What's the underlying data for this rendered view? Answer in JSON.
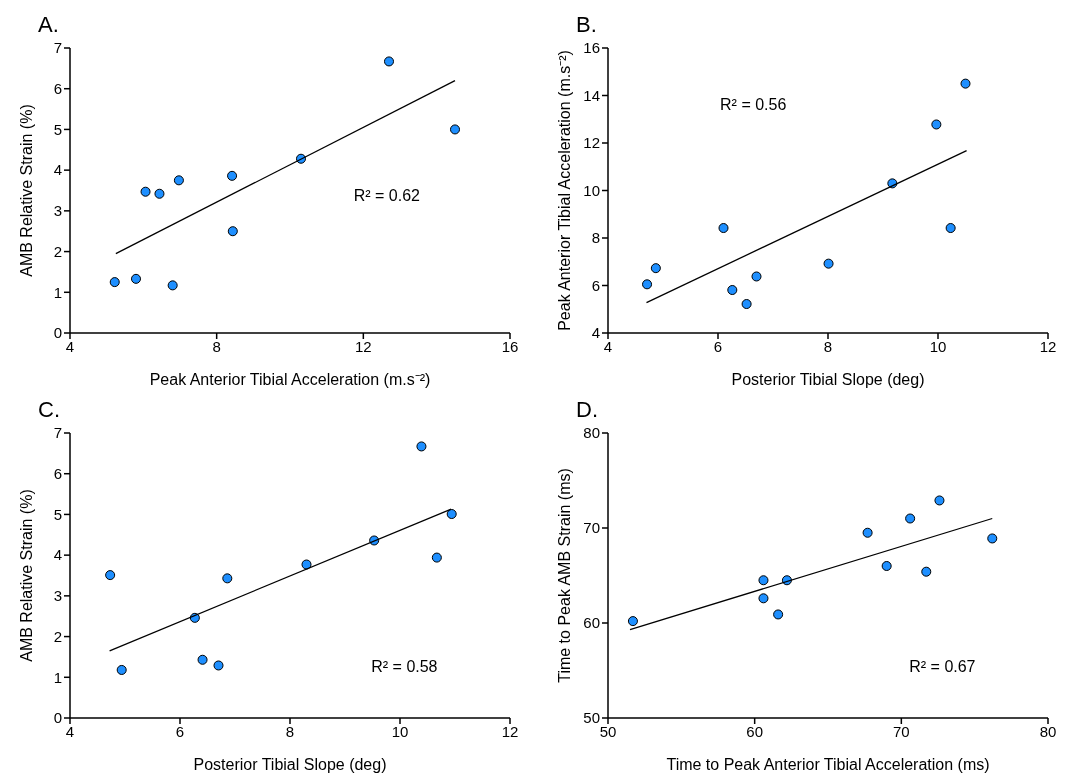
{
  "chart_data": [
    {
      "type": "scatter",
      "title": "A.",
      "xlabel": "Peak Anterior Tibial Acceleration (m.s⁻²)",
      "ylabel": "AMB Relative Strain (%)",
      "xlim": [
        4,
        16
      ],
      "xticks": [
        4,
        8,
        12,
        16
      ],
      "ylim": [
        0,
        7
      ],
      "yticks": [
        0,
        1,
        2,
        3,
        4,
        5,
        6,
        7
      ],
      "grid": false,
      "legend": false,
      "annotations": [
        "R² = 0.62"
      ],
      "series": [
        {
          "marker": "circle",
          "color": "#1e8fff",
          "x": [
            5.22,
            5.8,
            6.06,
            6.44,
            6.97,
            6.8,
            8.42,
            8.44,
            10.3,
            12.7,
            14.5
          ],
          "values": [
            1.25,
            1.33,
            3.47,
            3.42,
            3.75,
            1.17,
            3.86,
            2.5,
            4.28,
            6.67,
            5.0
          ]
        },
        {
          "type": "line",
          "marker": "none",
          "color": "#000000",
          "x": [
            5.25,
            14.5
          ],
          "values": [
            1.95,
            6.2
          ]
        }
      ]
    },
    {
      "type": "scatter",
      "title": "B.",
      "xlabel": "Posterior Tibial Slope (deg)",
      "ylabel": "Peak Anterior Tibial Acceleration (m.s⁻²)",
      "xlim": [
        4,
        12
      ],
      "xticks": [
        4,
        6,
        8,
        10,
        12
      ],
      "ylim": [
        4,
        16
      ],
      "yticks": [
        4,
        6,
        8,
        10,
        12,
        14,
        16
      ],
      "grid": false,
      "legend": false,
      "annotations": [
        "R² = 0.56"
      ],
      "series": [
        {
          "marker": "circle",
          "color": "#1e8fff",
          "x": [
            4.71,
            4.87,
            6.1,
            6.26,
            6.52,
            6.7,
            8.01,
            9.17,
            9.97,
            10.23,
            10.5
          ],
          "values": [
            6.05,
            6.73,
            8.42,
            5.81,
            5.22,
            6.38,
            6.92,
            10.3,
            12.78,
            8.42,
            14.5
          ]
        },
        {
          "type": "line",
          "marker": "none",
          "color": "#000000",
          "x": [
            4.7,
            10.52
          ],
          "values": [
            5.28,
            11.68
          ]
        }
      ]
    },
    {
      "type": "scatter",
      "title": "C.",
      "xlabel": "Posterior Tibial Slope (deg)",
      "ylabel": "AMB Relative Strain (%)",
      "xlim": [
        4,
        12
      ],
      "xticks": [
        4,
        6,
        8,
        10,
        12
      ],
      "ylim": [
        0,
        7
      ],
      "yticks": [
        0,
        1,
        2,
        3,
        4,
        5,
        6,
        7
      ],
      "grid": false,
      "legend": false,
      "annotations": [
        "R² = 0.58"
      ],
      "series": [
        {
          "marker": "circle",
          "color": "#1e8fff",
          "x": [
            4.73,
            4.94,
            6.27,
            6.41,
            6.7,
            6.86,
            8.3,
            9.53,
            10.39,
            10.67,
            10.94
          ],
          "values": [
            3.51,
            1.18,
            2.46,
            1.43,
            1.29,
            3.43,
            3.77,
            4.36,
            6.67,
            3.94,
            5.01
          ]
        },
        {
          "type": "line",
          "marker": "none",
          "color": "#000000",
          "x": [
            4.72,
            10.93
          ],
          "values": [
            1.65,
            5.13
          ]
        }
      ]
    },
    {
      "type": "scatter",
      "title": "D.",
      "xlabel": "Time to Peak Anterior Tibial Acceleration (ms)",
      "ylabel": "Time to Peak AMB Strain (ms)",
      "xlim": [
        50,
        80
      ],
      "xticks": [
        50,
        60,
        70,
        80
      ],
      "ylim": [
        50,
        80
      ],
      "yticks": [
        50,
        60,
        70,
        80
      ],
      "grid": false,
      "legend": false,
      "annotations": [
        "R² = 0.67"
      ],
      "series": [
        {
          "marker": "circle",
          "color": "#1e8fff",
          "x": [
            51.7,
            60.6,
            60.6,
            61.6,
            62.2,
            67.7,
            69.0,
            70.6,
            71.7,
            72.6,
            76.2
          ],
          "values": [
            60.2,
            64.5,
            62.6,
            60.9,
            64.5,
            69.5,
            66.0,
            71.0,
            65.4,
            72.9,
            68.9
          ]
        },
        {
          "type": "line",
          "marker": "none",
          "color": "#000000",
          "x": [
            51.5,
            76.2
          ],
          "values": [
            59.3,
            71.0
          ]
        }
      ]
    }
  ]
}
